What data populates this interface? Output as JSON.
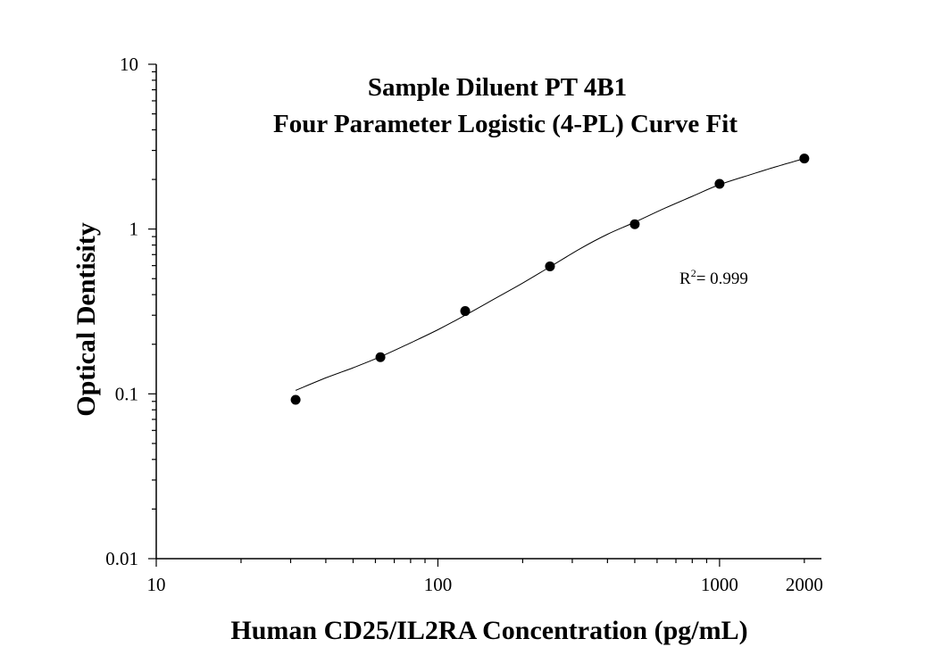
{
  "chart_data": {
    "type": "scatter",
    "title": "Sample Diluent PT 4B1",
    "subtitle": "Four Parameter Logistic (4-PL) Curve Fit",
    "xlabel": "Human CD25/IL2RA Concentration (pg/mL)",
    "ylabel": "Optical Dentisity",
    "x_scale": "log",
    "y_scale": "log",
    "xlim": [
      10,
      2300
    ],
    "ylim": [
      0.01,
      10
    ],
    "x_ticks": [
      {
        "value": 10,
        "label": "10"
      },
      {
        "value": 100,
        "label": "100"
      },
      {
        "value": 1000,
        "label": "1000"
      },
      {
        "value": 2000,
        "label": "2000"
      }
    ],
    "y_ticks": [
      {
        "value": 0.01,
        "label": "0.01"
      },
      {
        "value": 0.1,
        "label": "0.1"
      },
      {
        "value": 1,
        "label": "1"
      },
      {
        "value": 10,
        "label": "10"
      }
    ],
    "grid": false,
    "series": [
      {
        "kind": "points",
        "x": [
          31.25,
          62.5,
          125,
          250,
          500,
          1000,
          2000
        ],
        "y": [
          0.092,
          0.167,
          0.318,
          0.594,
          1.07,
          1.88,
          2.68
        ]
      },
      {
        "kind": "fit-curve",
        "x": [
          31.25,
          40,
          50,
          62.5,
          80,
          100,
          125,
          160,
          200,
          250,
          320,
          400,
          500,
          640,
          800,
          1000,
          1300,
          1600,
          2000
        ],
        "y": [
          0.105,
          0.125,
          0.144,
          0.168,
          0.204,
          0.245,
          0.3,
          0.38,
          0.47,
          0.59,
          0.76,
          0.93,
          1.1,
          1.34,
          1.58,
          1.86,
          2.15,
          2.4,
          2.68
        ]
      }
    ],
    "annotations": [
      {
        "text_base": "R",
        "text_sup": "2",
        "text_rest": "= 0.999",
        "x": 700,
        "y": 0.48
      }
    ]
  }
}
